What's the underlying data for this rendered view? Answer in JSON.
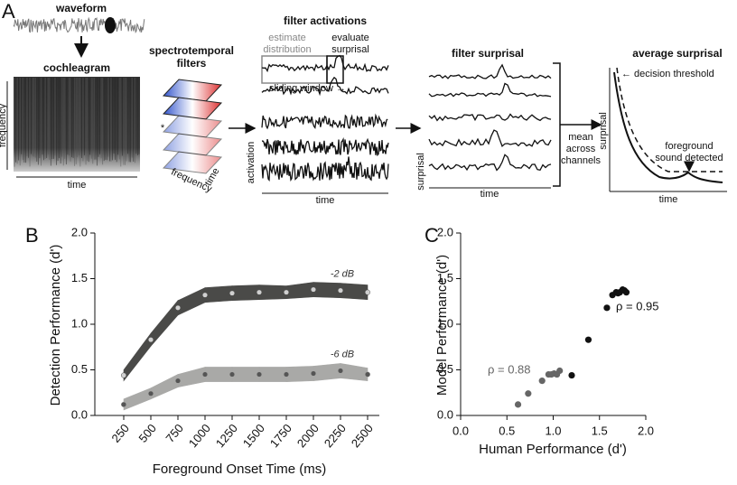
{
  "panel_a": {
    "label": "A",
    "waveform": "waveform",
    "cochleagram": "cochleagram",
    "coch_y": "frequency",
    "coch_x": "time",
    "filters_title": [
      "spectrotemporal",
      "filters"
    ],
    "conv": "*",
    "filter_freq": "frequency",
    "filter_time": "time",
    "activations_title": "filter activations",
    "estimate": [
      "estimate",
      "distribution"
    ],
    "evaluate": [
      "evaluate",
      "surprisal"
    ],
    "sliding": "sliding window →",
    "act_y": "activation",
    "act_x": "time",
    "surprisal_title": "filter surprisal",
    "surp_y": "surprisal",
    "surp_x": "time",
    "mean": [
      "mean",
      "across",
      "channels"
    ],
    "avg_title": "average surprisal",
    "threshold": "← decision threshold",
    "avg_y": "surprisal",
    "detected": [
      "foreground",
      "sound detected"
    ],
    "avg_x": "time"
  },
  "chart_data": [
    {
      "type": "line",
      "panel": "B",
      "categories": [
        "250",
        "500",
        "750",
        "1000",
        "1250",
        "1500",
        "1750",
        "2000",
        "2250",
        "2500"
      ],
      "series": [
        {
          "name": "-2 dB",
          "color": "#4a4a48",
          "marker_color": "#d0d0d0",
          "values": [
            0.44,
            0.83,
            1.18,
            1.32,
            1.34,
            1.35,
            1.35,
            1.38,
            1.37,
            1.35
          ],
          "errors": [
            0.06,
            0.07,
            0.08,
            0.08,
            0.08,
            0.08,
            0.07,
            0.08,
            0.08,
            0.08
          ]
        },
        {
          "name": "-6 dB",
          "color": "#a9a9a7",
          "marker_color": "#555555",
          "values": [
            0.12,
            0.24,
            0.38,
            0.45,
            0.45,
            0.45,
            0.45,
            0.46,
            0.49,
            0.45
          ],
          "errors": [
            0.06,
            0.06,
            0.07,
            0.08,
            0.08,
            0.08,
            0.08,
            0.08,
            0.08,
            0.07
          ]
        }
      ],
      "ylim": [
        0,
        2
      ],
      "yticks": [
        {
          "value": 0,
          "label": "0.0"
        },
        {
          "value": 0.5,
          "label": "0.5"
        },
        {
          "value": 1,
          "label": "1.0"
        },
        {
          "value": 1.5,
          "label": "1.5"
        },
        {
          "value": 2,
          "label": "2.0"
        }
      ],
      "xlabel": "Foreground Onset Time (ms)",
      "ylabel": "Detection Performance (d')"
    },
    {
      "type": "scatter",
      "panel": "C",
      "series": [
        {
          "color": "#666666",
          "x": [
            0.62,
            0.73,
            0.88,
            0.95,
            0.98,
            1.01,
            1.04,
            1.07
          ],
          "y": [
            0.12,
            0.24,
            0.38,
            0.45,
            0.45,
            0.46,
            0.45,
            0.49
          ]
        },
        {
          "color": "#111111",
          "x": [
            1.2,
            1.38,
            1.58,
            1.64,
            1.68,
            1.7,
            1.72,
            1.75,
            1.77,
            1.79
          ],
          "y": [
            0.44,
            0.83,
            1.18,
            1.32,
            1.35,
            1.34,
            1.35,
            1.38,
            1.37,
            1.35
          ]
        }
      ],
      "annotations": [
        {
          "text": "ρ = 0.88",
          "color": "#666666"
        },
        {
          "text": "ρ = 0.95",
          "color": "#111111"
        }
      ],
      "xlim": [
        0,
        2
      ],
      "ylim": [
        0,
        2
      ],
      "xticks": [
        {
          "value": 0,
          "label": "0.0"
        },
        {
          "value": 0.5,
          "label": "0.5"
        },
        {
          "value": 1,
          "label": "1.0"
        },
        {
          "value": 1.5,
          "label": "1.5"
        },
        {
          "value": 2,
          "label": "2.0"
        }
      ],
      "yticks": [
        {
          "value": 0,
          "label": "0.0"
        },
        {
          "value": 0.5,
          "label": "0.5"
        },
        {
          "value": 1,
          "label": "1.0"
        },
        {
          "value": 1.5,
          "label": "1.5"
        },
        {
          "value": 2,
          "label": "2.0"
        }
      ],
      "xlabel": "Human Performance (d')",
      "ylabel": "Model Performance (d')"
    }
  ]
}
